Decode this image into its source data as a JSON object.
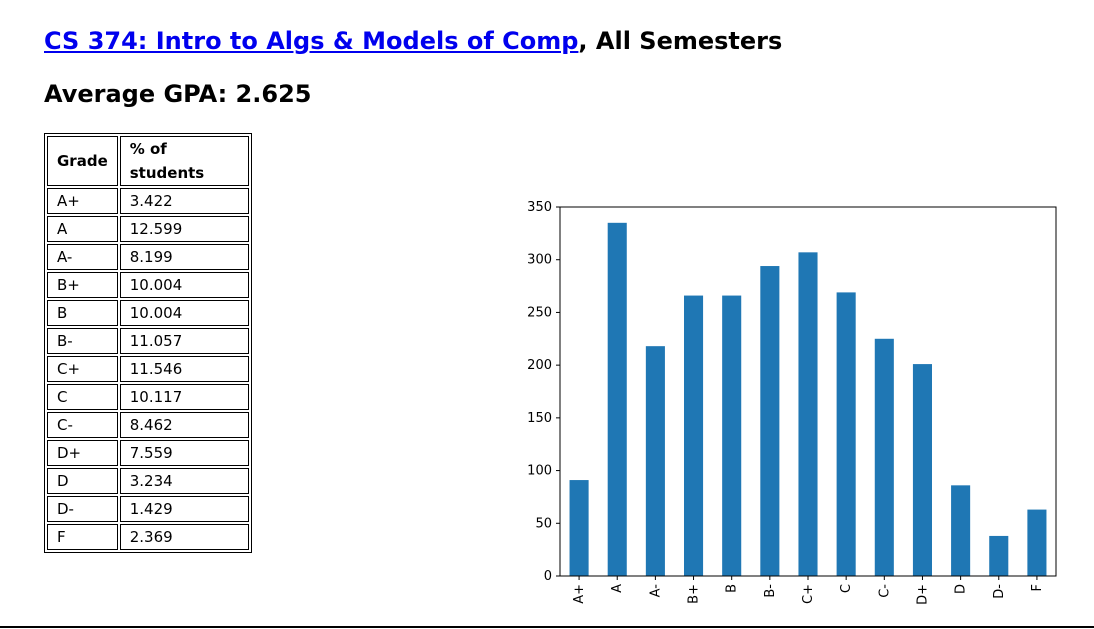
{
  "header": {
    "course_link": "CS 374: Intro to Algs & Models of Comp",
    "course_suffix": ", All Semesters",
    "average_label": "Average GPA: ",
    "average_value": "2.625"
  },
  "table": {
    "headers": [
      "Grade",
      "% of students"
    ],
    "rows": [
      [
        "A+",
        "3.422"
      ],
      [
        "A",
        "12.599"
      ],
      [
        "A-",
        "8.199"
      ],
      [
        "B+",
        "10.004"
      ],
      [
        "B",
        "10.004"
      ],
      [
        "B-",
        "11.057"
      ],
      [
        "C+",
        "11.546"
      ],
      [
        "C",
        "10.117"
      ],
      [
        "C-",
        "8.462"
      ],
      [
        "D+",
        "7.559"
      ],
      [
        "D",
        "3.234"
      ],
      [
        "D-",
        "1.429"
      ],
      [
        "F",
        "2.369"
      ]
    ]
  },
  "chart_data": {
    "type": "bar",
    "categories": [
      "A+",
      "A",
      "A-",
      "B+",
      "B",
      "B-",
      "C+",
      "C",
      "C-",
      "D+",
      "D",
      "D-",
      "F"
    ],
    "values": [
      91,
      335,
      218,
      266,
      266,
      294,
      307,
      269,
      225,
      201,
      86,
      38,
      63
    ],
    "title": "",
    "xlabel": "",
    "ylabel": "",
    "ylim": [
      0,
      350
    ],
    "yticks": [
      0,
      50,
      100,
      150,
      200,
      250,
      300,
      350
    ],
    "bar_color": "#1f77b4",
    "grid": false,
    "legend": "none"
  },
  "colors": {
    "link": "#0000ee",
    "bar": "#1f77b4"
  }
}
